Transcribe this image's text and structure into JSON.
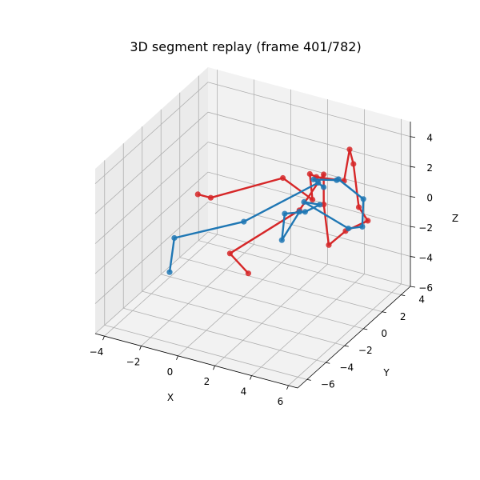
{
  "chart_data": {
    "type": "line3d",
    "title": "3D segment replay (frame 401/782)",
    "xlabel": "X",
    "ylabel": "Y",
    "zlabel": "Z",
    "xlim": [
      -4.5,
      6.5
    ],
    "ylim": [
      -7,
      5
    ],
    "zlim": [
      -6,
      5
    ],
    "xticks": [
      -4,
      -2,
      0,
      2,
      4,
      6
    ],
    "yticks": [
      -6,
      -4,
      -2,
      0,
      2,
      4
    ],
    "zticks": [
      -6,
      -4,
      -2,
      0,
      2,
      4
    ],
    "grid": true,
    "series": [
      {
        "color": "#d62728",
        "points": [
          [
            -2.5,
            0.0,
            0.0
          ],
          [
            -1.8,
            0.0,
            0.0
          ],
          [
            1.0,
            2.2,
            1.0
          ],
          [
            2.2,
            3.0,
            -0.5
          ],
          [
            1.8,
            3.5,
            0.8
          ],
          [
            2.0,
            3.8,
            0.5
          ],
          [
            3.0,
            4.8,
            0.0
          ],
          [
            3.3,
            4.8,
            2.2
          ],
          [
            3.3,
            5.2,
            1.0
          ],
          [
            4.0,
            4.4,
            -1.2
          ],
          [
            4.8,
            3.8,
            -1.5
          ],
          [
            4.0,
            3.0,
            -2.0
          ],
          [
            3.6,
            2.0,
            -2.5
          ],
          [
            2.2,
            4.2,
            -1.5
          ],
          [
            2.4,
            3.8,
            0.8
          ],
          [
            1.8,
            2.4,
            -1.0
          ],
          [
            -0.5,
            -0.5,
            -3.0
          ],
          [
            0.5,
            -0.5,
            -4.0
          ]
        ]
      },
      {
        "color": "#1f77b4",
        "points": [
          [
            -2.5,
            -3.0,
            -3.5
          ],
          [
            -2.5,
            -2.5,
            -1.5
          ],
          [
            0.0,
            0.0,
            -1.0
          ],
          [
            2.0,
            4.0,
            0.0
          ],
          [
            2.3,
            4.0,
            -0.2
          ],
          [
            2.0,
            3.5,
            0.5
          ],
          [
            3.0,
            4.0,
            0.5
          ],
          [
            3.1,
            4.0,
            0.6
          ],
          [
            4.3,
            4.3,
            -0.5
          ],
          [
            4.5,
            3.8,
            -2.0
          ],
          [
            4.0,
            3.3,
            -2.0
          ],
          [
            2.3,
            1.9,
            0.0
          ],
          [
            2.6,
            3.0,
            -0.7
          ],
          [
            1.9,
            2.8,
            -1.3
          ],
          [
            1.2,
            2.0,
            -1.2
          ],
          [
            1.2,
            1.7,
            -2.8
          ],
          [
            1.8,
            2.4,
            -1.1
          ]
        ]
      }
    ]
  }
}
